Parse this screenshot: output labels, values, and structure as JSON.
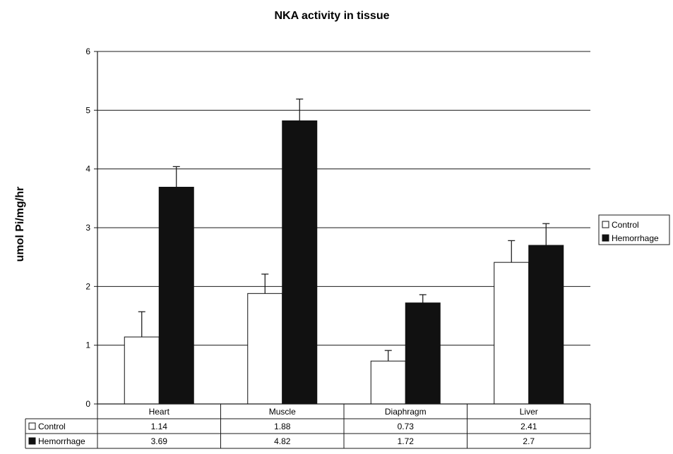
{
  "chart_data": {
    "type": "bar",
    "title": "NKA activity in tissue",
    "xlabel": "",
    "ylabel": "umol Pi/mg/hr",
    "ylim": [
      0,
      6
    ],
    "yticks": [
      "0",
      "1",
      "2",
      "3",
      "4",
      "5",
      "6"
    ],
    "grid": true,
    "legend_position": "right",
    "categories": [
      "Heart",
      "Muscle",
      "Diaphragm",
      "Liver"
    ],
    "series": [
      {
        "name": "Control",
        "values": [
          1.14,
          1.88,
          0.73,
          2.41
        ],
        "value_labels": [
          "1.14",
          "1.88",
          "0.73",
          "2.41"
        ],
        "error": [
          0.43,
          0.33,
          0.18,
          0.37
        ],
        "color": "#ffffff"
      },
      {
        "name": "Hemorrhage",
        "values": [
          3.69,
          4.82,
          1.72,
          2.7
        ],
        "value_labels": [
          "3.69",
          "4.82",
          "1.72",
          "2.7"
        ],
        "error": [
          0.35,
          0.37,
          0.14,
          0.37
        ],
        "color": "#111111"
      }
    ]
  }
}
